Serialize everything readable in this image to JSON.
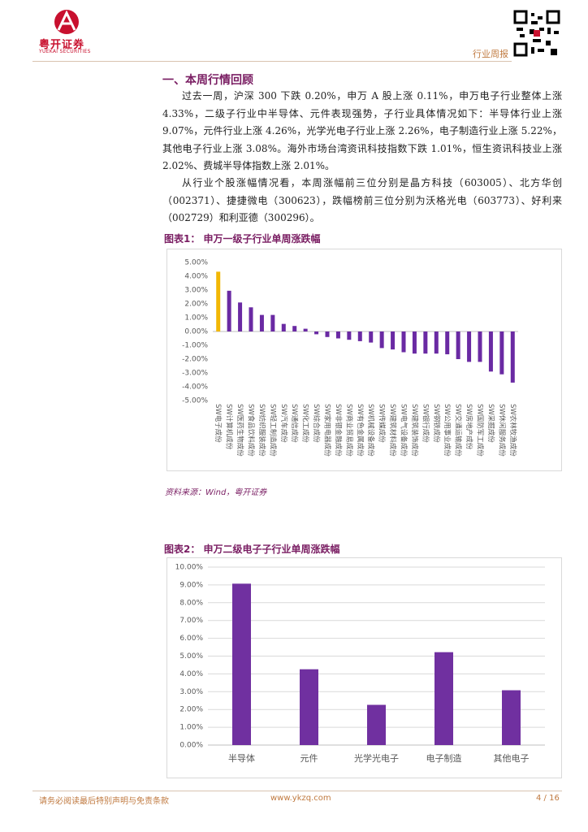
{
  "header": {
    "brand": "粤开证券",
    "brand_en": "YUEKAI SECURITIES",
    "report_type": "行业周报"
  },
  "section_title": "一、本周行情回顾",
  "paragraphs": [
    "过去一周，沪深 300 下跌 0.20%，申万 A 股上涨 0.11%，申万电子行业整体上涨 4.33%，二级子行业中半导体、元件表现强势，子行业具体情况如下：半导体行业上涨 9.07%，元件行业上涨 4.26%，光学光电子行业上涨 2.26%，电子制造行业上涨 5.22%，其他电子行业上涨 3.08%。海外市场台湾资讯科技指数下跌 1.01%，恒生资讯科技业上涨 2.02%、费城半导体指数上涨 2.01%。",
    "从行业个股涨幅情况看，本周涨幅前三位分别是晶方科技（603005）、北方华创（002371）、捷捷微电（300623），跌幅榜前三位分别为沃格光电（603773）、好利来（002729）和利亚德（300296）。"
  ],
  "chart_data": [
    {
      "type": "bar",
      "title": "图表1：  申万一级子行业单周涨跌幅",
      "source": "资料来源：Wind，粤开证券",
      "categories": [
        "SW电子成份",
        "SW计算机成份",
        "SW医药生物成份",
        "SW食品饮料成份",
        "SW纺织服装成份",
        "SW轻工制造成份",
        "SW汽车成份",
        "SW通信成份",
        "SW化工成份",
        "SW综合成份",
        "SW家用电器成份",
        "SW非银金融成份",
        "SW商业贸易成份",
        "SW有色金属成份",
        "SW机械设备成份",
        "SW传媒成份",
        "SW建筑材料成份",
        "SW电气设备成份",
        "SW建筑装饰成份",
        "SW银行成份",
        "SW钢铁成份",
        "SW公用事业成份",
        "SW交通运输成份",
        "SW房地产成份",
        "SW国防军工成份",
        "SW采掘成份",
        "SW休闲服务成份",
        "SW农林牧渔成份"
      ],
      "values": [
        4.33,
        2.95,
        2.1,
        1.75,
        1.2,
        1.2,
        0.55,
        0.4,
        0.2,
        -0.2,
        -0.4,
        -0.5,
        -0.6,
        -0.7,
        -0.8,
        -1.2,
        -1.3,
        -1.5,
        -1.6,
        -1.6,
        -1.6,
        -1.65,
        -2.0,
        -2.2,
        -2.2,
        -2.9,
        -3.1,
        -3.7
      ],
      "colors": [
        "#f2b705",
        "#6a2aa3",
        "#6a2aa3",
        "#6a2aa3",
        "#6a2aa3",
        "#6a2aa3",
        "#6a2aa3",
        "#6a2aa3",
        "#6a2aa3",
        "#6a2aa3",
        "#6a2aa3",
        "#6a2aa3",
        "#6a2aa3",
        "#6a2aa3",
        "#6a2aa3",
        "#6a2aa3",
        "#6a2aa3",
        "#6a2aa3",
        "#6a2aa3",
        "#6a2aa3",
        "#6a2aa3",
        "#6a2aa3",
        "#6a2aa3",
        "#6a2aa3",
        "#6a2aa3",
        "#6a2aa3",
        "#6a2aa3",
        "#6a2aa3"
      ],
      "ylim": [
        -5,
        5
      ],
      "yticks": [
        {
          "value": 5,
          "label": "5.00%"
        },
        {
          "value": 4,
          "label": "4.00%"
        },
        {
          "value": 3,
          "label": "3.00%"
        },
        {
          "value": 2,
          "label": "2.00%"
        },
        {
          "value": 1,
          "label": "1.00%"
        },
        {
          "value": 0,
          "label": "0.00%"
        },
        {
          "value": -1,
          "label": "-1.00%"
        },
        {
          "value": -2,
          "label": "-2.00%"
        },
        {
          "value": -3,
          "label": "-3.00%"
        },
        {
          "value": -4,
          "label": "-4.00%"
        },
        {
          "value": -5,
          "label": "-5.00%"
        }
      ],
      "grid": false
    },
    {
      "type": "bar",
      "title": "图表2：  申万二级电子子行业单周涨跌幅",
      "categories": [
        "半导体",
        "元件",
        "光学光电子",
        "电子制造",
        "其他电子"
      ],
      "values": [
        9.07,
        4.26,
        2.26,
        5.22,
        3.08
      ],
      "colors": [
        "#7030a0",
        "#7030a0",
        "#7030a0",
        "#7030a0",
        "#7030a0"
      ],
      "ylim": [
        0,
        10
      ],
      "yticks": [
        {
          "value": 10,
          "label": "10.00%"
        },
        {
          "value": 9,
          "label": "9.00%"
        },
        {
          "value": 8,
          "label": "8.00%"
        },
        {
          "value": 7,
          "label": "7.00%"
        },
        {
          "value": 6,
          "label": "6.00%"
        },
        {
          "value": 5,
          "label": "5.00%"
        },
        {
          "value": 4,
          "label": "4.00%"
        },
        {
          "value": 3,
          "label": "3.00%"
        },
        {
          "value": 2,
          "label": "2.00%"
        },
        {
          "value": 1,
          "label": "1.00%"
        },
        {
          "value": 0,
          "label": "0.00%"
        }
      ],
      "grid": true
    }
  ],
  "footer": {
    "disclaimer": "请务必阅读最后特别声明与免责条款",
    "website": "www.ykzq.com",
    "page": "4 / 16"
  }
}
